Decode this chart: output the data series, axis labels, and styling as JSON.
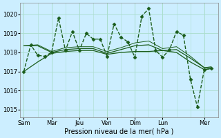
{
  "bg_color": "#cceeff",
  "grid_color": "#aaddcc",
  "line_color": "#1a5c1a",
  "xlabel": "Pression niveau de la mer( hPa )",
  "xlabel_fontsize": 7,
  "ylim": [
    1014.6,
    1020.6
  ],
  "yticks": [
    1015,
    1016,
    1017,
    1018,
    1019,
    1020
  ],
  "ytick_fontsize": 6,
  "xtick_fontsize": 6,
  "x_tick_labels": [
    "Sam",
    "Mar",
    "Jeu",
    "Ven",
    "Dim",
    "Lun",
    "Mer"
  ],
  "x_tick_positions": [
    0,
    24,
    48,
    72,
    96,
    120,
    156
  ],
  "xlim": [
    -3,
    168
  ],
  "series": [
    {
      "x": [
        0,
        6,
        12,
        18,
        24,
        30,
        36,
        42,
        48,
        54,
        60,
        66,
        72,
        78,
        84,
        90,
        96,
        102,
        108,
        114,
        120,
        126,
        132,
        138,
        144,
        150,
        156,
        162
      ],
      "y": [
        1017.0,
        1018.4,
        1017.85,
        1017.8,
        1018.0,
        1019.8,
        1018.1,
        1019.1,
        1018.1,
        1019.0,
        1018.7,
        1018.7,
        1017.8,
        1019.5,
        1018.8,
        1018.55,
        1017.75,
        1019.9,
        1020.3,
        1018.1,
        1017.75,
        1018.15,
        1019.1,
        1018.9,
        1016.6,
        1015.15,
        1017.1,
        1017.15
      ],
      "marker": "D",
      "markersize": 2.5,
      "linewidth": 1.0,
      "linestyle": "--"
    },
    {
      "x": [
        0,
        12,
        24,
        36,
        48,
        60,
        72,
        84,
        96,
        108,
        120,
        132,
        144,
        156,
        162
      ],
      "y": [
        1017.0,
        1017.5,
        1017.95,
        1018.05,
        1018.1,
        1018.1,
        1017.9,
        1018.0,
        1018.05,
        1018.05,
        1018.1,
        1018.0,
        1017.5,
        1017.1,
        1017.15
      ],
      "marker": null,
      "markersize": 0,
      "linewidth": 0.9,
      "linestyle": "-"
    },
    {
      "x": [
        0,
        12,
        24,
        36,
        48,
        60,
        72,
        84,
        96,
        108,
        120,
        132,
        144,
        156,
        162
      ],
      "y": [
        1018.35,
        1018.35,
        1018.0,
        1018.15,
        1018.2,
        1018.2,
        1017.95,
        1018.15,
        1018.35,
        1018.4,
        1018.1,
        1018.15,
        1017.7,
        1017.2,
        1017.2
      ],
      "marker": null,
      "markersize": 0,
      "linewidth": 0.9,
      "linestyle": "-"
    },
    {
      "x": [
        0,
        12,
        24,
        36,
        48,
        60,
        72,
        84,
        96,
        108,
        120,
        132,
        144,
        156,
        162
      ],
      "y": [
        1018.35,
        1018.4,
        1018.05,
        1018.25,
        1018.3,
        1018.3,
        1018.05,
        1018.25,
        1018.5,
        1018.6,
        1018.2,
        1018.3,
        1017.8,
        1017.2,
        1017.25
      ],
      "marker": null,
      "markersize": 0,
      "linewidth": 0.7,
      "linestyle": "-"
    }
  ]
}
